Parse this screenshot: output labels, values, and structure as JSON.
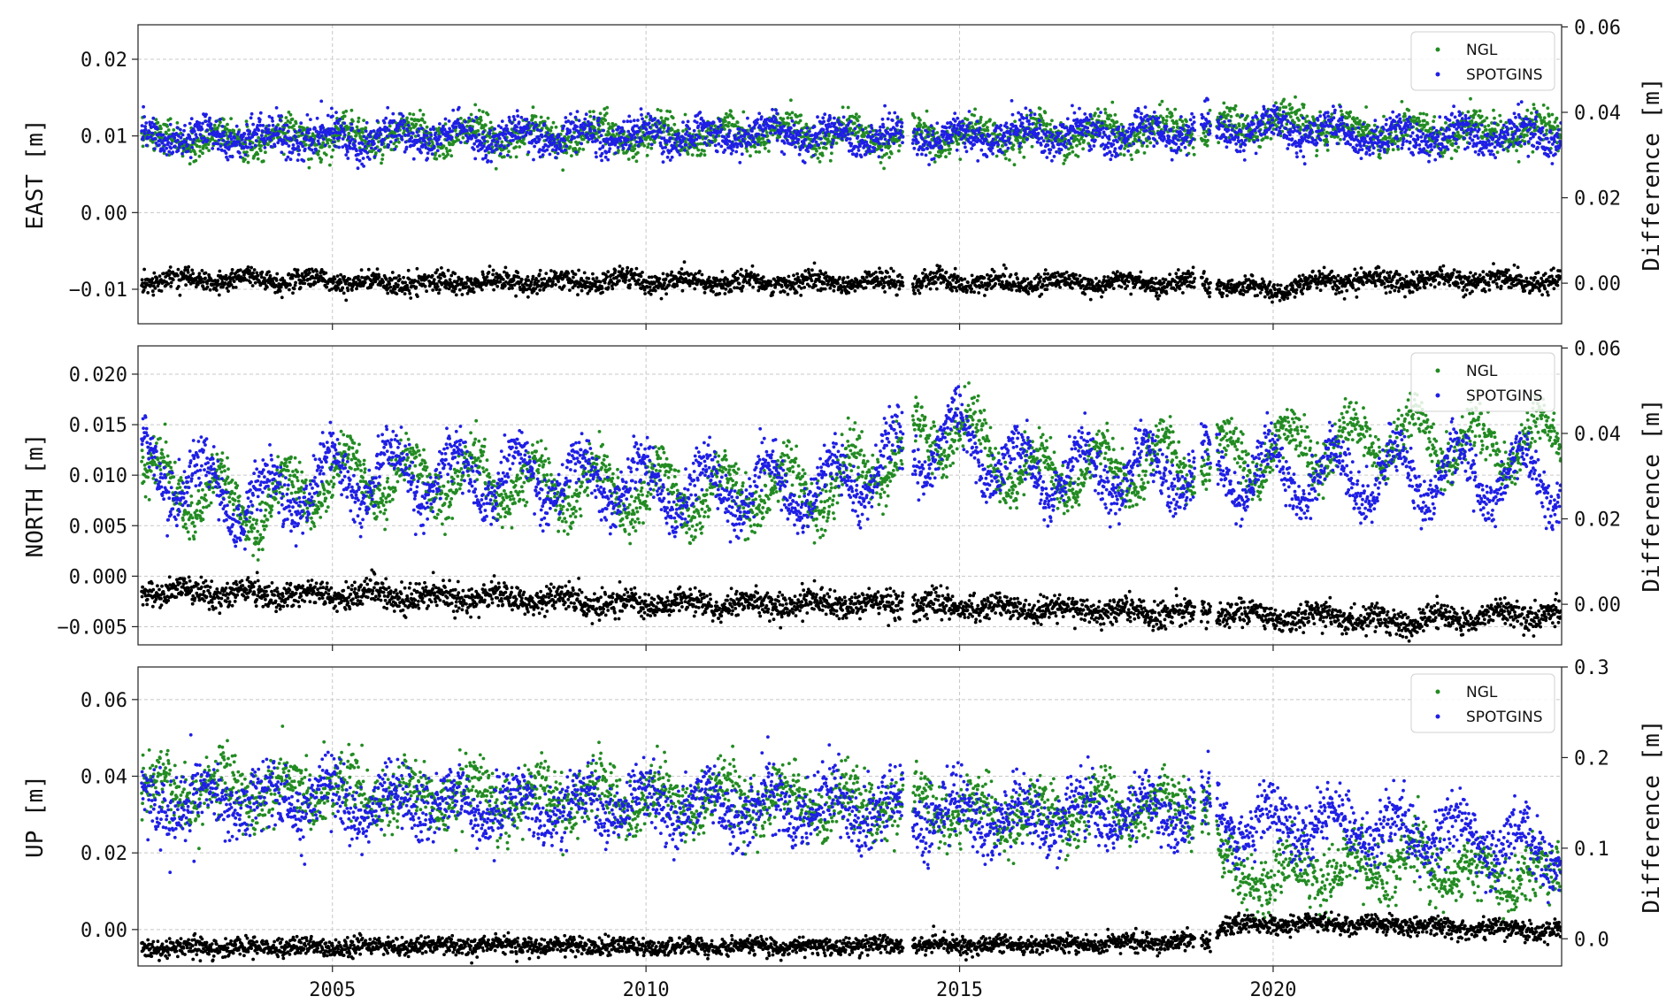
{
  "chart_data": [
    {
      "type": "scatter",
      "xlabel": "",
      "ylabel": "EAST [m]",
      "y2label": "Difference [m]",
      "xlim": [
        2001.9,
        2024.6
      ],
      "ylim": [
        -0.0145,
        0.0245
      ],
      "y2lim": [
        -0.0095,
        0.0605
      ],
      "xticks": [
        2005,
        2010,
        2015,
        2020
      ],
      "yticks": [
        -0.01,
        0.0,
        0.01,
        0.02
      ],
      "ytick_labels": [
        "−0.01",
        "0.00",
        "0.01",
        "0.02"
      ],
      "y2ticks": [
        0.0,
        0.02,
        0.04,
        0.06
      ],
      "y2tick_labels": [
        "0.00",
        "0.02",
        "0.04",
        "0.06"
      ],
      "grid": true,
      "legend": {
        "position": "top-right",
        "entries": [
          "NGL",
          "SPOTGINS"
        ]
      },
      "gaps": [
        [
          2014.1,
          2014.25
        ],
        [
          2018.75,
          2018.85
        ],
        [
          2019.0,
          2019.1
        ]
      ],
      "series": [
        {
          "name": "NGL",
          "color": "#228b22",
          "axis": "left",
          "x": [
            2002,
            2004,
            2006,
            2008,
            2010,
            2012,
            2014,
            2016,
            2018,
            2019.3,
            2020,
            2021,
            2022,
            2023,
            2024.5
          ],
          "y": [
            0.0095,
            0.0098,
            0.01,
            0.0102,
            0.01,
            0.0104,
            0.0098,
            0.0102,
            0.0106,
            0.011,
            0.012,
            0.0112,
            0.0104,
            0.0106,
            0.0104
          ],
          "amplitude": 0.0012,
          "noise": 0.0011
        },
        {
          "name": "SPOTGINS",
          "color": "#1f1fe6",
          "axis": "left",
          "x": [
            2002,
            2004,
            2006,
            2008,
            2010,
            2012,
            2014,
            2016,
            2018,
            2019.3,
            2020,
            2021,
            2022,
            2023,
            2024.5
          ],
          "y": [
            0.01,
            0.0098,
            0.0098,
            0.01,
            0.01,
            0.0104,
            0.0098,
            0.0102,
            0.0104,
            0.011,
            0.0108,
            0.0104,
            0.0098,
            0.0098,
            0.0102
          ],
          "amplitude": 0.0012,
          "noise": 0.0011
        },
        {
          "name": "",
          "color": "#000000",
          "axis": "right",
          "x": [
            2002,
            2004,
            2006,
            2008,
            2010,
            2012,
            2014,
            2016,
            2018,
            2019.3,
            2020,
            2021,
            2022,
            2023,
            2024.5
          ],
          "y": [
            0.001,
            0.0008,
            0.0,
            0.0002,
            0.0004,
            0.0002,
            0.0002,
            0.0,
            0.0,
            -0.0005,
            -0.0018,
            0.0008,
            0.0004,
            0.0008,
            0.0004
          ],
          "amplitude": 0.0008,
          "noise": 0.0012
        }
      ]
    },
    {
      "type": "scatter",
      "xlabel": "",
      "ylabel": "NORTH [m]",
      "y2label": "Difference [m]",
      "xlim": [
        2001.9,
        2024.6
      ],
      "ylim": [
        -0.0068,
        0.0228
      ],
      "y2lim": [
        -0.0095,
        0.0605
      ],
      "xticks": [
        2005,
        2010,
        2015,
        2020
      ],
      "yticks": [
        -0.005,
        0.0,
        0.005,
        0.01,
        0.015,
        0.02
      ],
      "ytick_labels": [
        "−0.005",
        "0.000",
        "0.005",
        "0.010",
        "0.015",
        "0.020"
      ],
      "y2ticks": [
        0.0,
        0.02,
        0.04,
        0.06
      ],
      "y2tick_labels": [
        "0.00",
        "0.02",
        "0.04",
        "0.06"
      ],
      "grid": true,
      "legend": {
        "position": "top-right",
        "entries": [
          "NGL",
          "SPOTGINS"
        ]
      },
      "gaps": [
        [
          2014.1,
          2014.25
        ],
        [
          2018.75,
          2018.85
        ],
        [
          2019.0,
          2019.1
        ]
      ],
      "series": [
        {
          "name": "NGL",
          "color": "#228b22",
          "axis": "left",
          "x": [
            2002,
            2003.8,
            2005,
            2007,
            2009,
            2011,
            2013,
            2014.9,
            2016,
            2018,
            2019.3,
            2020,
            2021,
            2022,
            2023,
            2024.5
          ],
          "y": [
            0.01,
            0.0065,
            0.01,
            0.0095,
            0.009,
            0.008,
            0.009,
            0.015,
            0.01,
            0.011,
            0.0115,
            0.0125,
            0.013,
            0.014,
            0.013,
            0.0135
          ],
          "amplitude": 0.0025,
          "noise": 0.0012
        },
        {
          "name": "SPOTGINS",
          "color": "#1f1fe6",
          "axis": "left",
          "x": [
            2002,
            2003.8,
            2005,
            2007,
            2009,
            2011,
            2013,
            2014.9,
            2016,
            2018,
            2019.3,
            2020,
            2021,
            2022,
            2023,
            2024.5
          ],
          "y": [
            0.011,
            0.007,
            0.01,
            0.01,
            0.0095,
            0.0085,
            0.009,
            0.014,
            0.01,
            0.0105,
            0.0105,
            0.01,
            0.01,
            0.01,
            0.01,
            0.0095
          ],
          "amplitude": 0.0028,
          "noise": 0.0012
        },
        {
          "name": "",
          "color": "#000000",
          "axis": "right",
          "x": [
            2002,
            2004,
            2006,
            2008,
            2010,
            2012,
            2014,
            2016,
            2018,
            2019.3,
            2020,
            2021,
            2022,
            2023,
            2024.5
          ],
          "y": [
            0.003,
            0.0025,
            0.002,
            0.0015,
            0.0,
            0.0,
            0.0,
            -0.001,
            -0.002,
            -0.002,
            -0.003,
            -0.003,
            -0.004,
            -0.003,
            -0.002
          ],
          "amplitude": 0.001,
          "noise": 0.0015
        }
      ]
    },
    {
      "type": "scatter",
      "xlabel": "",
      "ylabel": "UP [m]",
      "y2label": "Difference [m]",
      "xlim": [
        2001.9,
        2024.6
      ],
      "ylim": [
        -0.0095,
        0.0685
      ],
      "y2lim": [
        -0.03,
        0.3
      ],
      "xticks": [
        2005,
        2010,
        2015,
        2020
      ],
      "xtick_labels": [
        "2005",
        "2010",
        "2015",
        "2020"
      ],
      "yticks": [
        0.0,
        0.02,
        0.04,
        0.06
      ],
      "ytick_labels": [
        "0.00",
        "0.02",
        "0.04",
        "0.06"
      ],
      "y2ticks": [
        0.0,
        0.1,
        0.2,
        0.3
      ],
      "y2tick_labels": [
        "0.0",
        "0.1",
        "0.2",
        "0.3"
      ],
      "grid": true,
      "legend": {
        "position": "top-right",
        "entries": [
          "NGL",
          "SPOTGINS"
        ]
      },
      "gaps": [
        [
          2014.1,
          2014.25
        ],
        [
          2018.75,
          2018.85
        ],
        [
          2019.0,
          2019.1
        ]
      ],
      "series": [
        {
          "name": "NGL",
          "color": "#228b22",
          "axis": "left",
          "x": [
            2002,
            2004,
            2006,
            2008,
            2010,
            2012,
            2014,
            2016,
            2018,
            2019.0,
            2019.2,
            2020,
            2021,
            2022,
            2023,
            2024.5
          ],
          "y": [
            0.036,
            0.037,
            0.035,
            0.0345,
            0.0345,
            0.034,
            0.033,
            0.03,
            0.032,
            0.032,
            0.015,
            0.014,
            0.015,
            0.018,
            0.015,
            0.014
          ],
          "amplitude": 0.004,
          "noise": 0.004
        },
        {
          "name": "SPOTGINS",
          "color": "#1f1fe6",
          "axis": "left",
          "x": [
            2002,
            2004,
            2006,
            2008,
            2010,
            2012,
            2014,
            2016,
            2018,
            2019.0,
            2019.2,
            2020,
            2021,
            2022,
            2023,
            2024.5
          ],
          "y": [
            0.033,
            0.034,
            0.033,
            0.032,
            0.033,
            0.032,
            0.031,
            0.029,
            0.031,
            0.031,
            0.029,
            0.028,
            0.027,
            0.026,
            0.025,
            0.02
          ],
          "amplitude": 0.0045,
          "noise": 0.004
        },
        {
          "name": "",
          "color": "#000000",
          "axis": "right",
          "x": [
            2002,
            2004,
            2006,
            2008,
            2010,
            2012,
            2014,
            2016,
            2018,
            2019.0,
            2019.2,
            2020,
            2021,
            2022,
            2023,
            2024.5
          ],
          "y": [
            -0.01,
            -0.01,
            -0.008,
            -0.008,
            -0.008,
            -0.008,
            -0.008,
            -0.006,
            -0.004,
            -0.003,
            0.015,
            0.016,
            0.017,
            0.015,
            0.012,
            0.01
          ],
          "amplitude": 0.002,
          "noise": 0.005
        }
      ]
    }
  ]
}
